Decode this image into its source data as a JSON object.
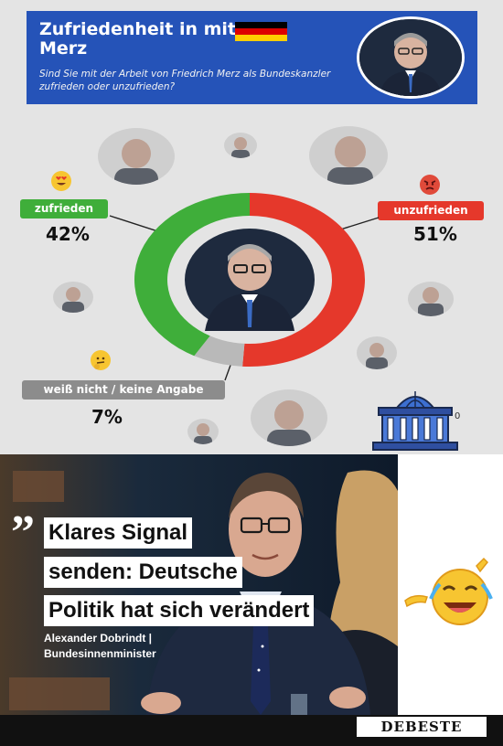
{
  "poll": {
    "title": "Zufriedenheit in mit Merz",
    "question": "Sind Sie mit der Arbeit von Friedrich Merz als Bundeskanzler zufrieden oder unzufrieden?",
    "results": [
      {
        "label": "zufrieden",
        "percent_text": "42%",
        "value": 42,
        "color": "#3fae3a",
        "emoji": "heart-eyes-emoji"
      },
      {
        "label": "unzufrieden",
        "percent_text": "51%",
        "value": 51,
        "color": "#e5382b",
        "emoji": "angry-face-emoji"
      },
      {
        "label": "weiß nicht / keine Angabe",
        "percent_text": "7%",
        "value": 7,
        "color": "#b9b9b9",
        "emoji": "thinking-face-emoji"
      }
    ],
    "header_color": "#2553b8",
    "corner_number": "0"
  },
  "quote_card": {
    "quote_lines": [
      "Klares Signal",
      "senden: Deutsche",
      "Politik hat sich verändert"
    ],
    "speaker_name": "Alexander Dobrindt |",
    "speaker_role": "Bundesinnenminister"
  },
  "watermark": "DEBESTE",
  "icons": [
    "germany-flag-icon",
    "bundestag-building-icon",
    "laughing-emoji-icon",
    "quote-mark-icon"
  ]
}
